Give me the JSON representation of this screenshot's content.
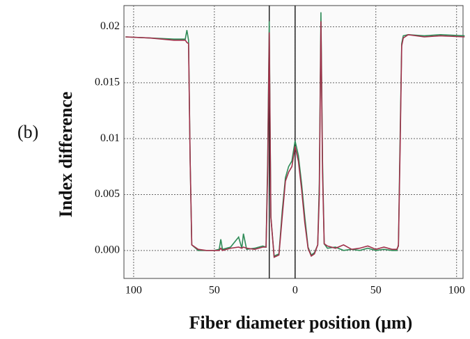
{
  "chart_data": {
    "type": "line",
    "annotation": "(b)",
    "y_label": "Index difference",
    "x_label": "Fiber diameter position (μm)",
    "x": [
      -105,
      -90,
      -75,
      -68,
      -67,
      -66,
      -65,
      -64,
      -60,
      -55,
      -50,
      -47,
      -46,
      -45,
      -40,
      -35,
      -33,
      -32,
      -30,
      -25,
      -20,
      -18,
      -17,
      -16,
      -15,
      -13,
      -10,
      -8,
      -6,
      -4,
      -2,
      0,
      2,
      4,
      6,
      8,
      10,
      12,
      14,
      15,
      16,
      17,
      18,
      20,
      25,
      30,
      35,
      40,
      45,
      50,
      55,
      60,
      63,
      64,
      65,
      66,
      67,
      70,
      80,
      90,
      105
    ],
    "series": [
      {
        "color": "#2e8b57",
        "values": [
          0.0191,
          0.019,
          0.0189,
          0.0189,
          0.0197,
          0.0188,
          0.008,
          0.0005,
          0,
          0,
          0,
          0.0001,
          0.001,
          0.0001,
          0.0003,
          0.0012,
          0.0002,
          0.0015,
          0.0001,
          0.0002,
          0.0004,
          0.0003,
          0.008,
          0.0205,
          0.003,
          -0.0005,
          -0.0003,
          0.0035,
          0.0065,
          0.0075,
          0.008,
          0.0098,
          0.0085,
          0.006,
          0.003,
          0.0003,
          -0.0004,
          -0.0002,
          0.0005,
          0.006,
          0.0213,
          0.008,
          0.0006,
          0.0002,
          0.0003,
          0,
          0.0001,
          0,
          0.0002,
          0,
          0.0001,
          0,
          0,
          0.0005,
          0.01,
          0.0185,
          0.0192,
          0.0193,
          0.0192,
          0.0193,
          0.0192
        ]
      },
      {
        "color": "#a0304a",
        "values": [
          0.0191,
          0.019,
          0.0188,
          0.0188,
          0.0186,
          0.0185,
          0.008,
          0.0005,
          0.0001,
          0,
          0,
          0,
          0.0002,
          0,
          0.0002,
          0.0003,
          0.0002,
          0.0003,
          0.0002,
          0.0001,
          0.0003,
          0.0003,
          0.007,
          0.0195,
          0.003,
          -0.0006,
          -0.0004,
          0.003,
          0.0062,
          0.007,
          0.0075,
          0.0093,
          0.008,
          0.0055,
          0.0025,
          0.0002,
          -0.0005,
          -0.0003,
          0.0005,
          0.005,
          0.0205,
          0.007,
          0.0006,
          0.0004,
          0.0002,
          0.0005,
          0.0001,
          0.0002,
          0.0004,
          0.0001,
          0.0003,
          0.0001,
          0.0001,
          0.0004,
          0.009,
          0.0183,
          0.019,
          0.0193,
          0.0191,
          0.0192,
          0.0191
        ]
      }
    ],
    "xlim": [
      -106,
      104
    ],
    "xticks": [
      {
        "value": -100,
        "label": "100"
      },
      {
        "value": -50,
        "label": "50"
      },
      0,
      50,
      100
    ],
    "ylim": [
      -0.0025,
      0.0219
    ],
    "yticks": [
      {
        "value": 0,
        "label": "0.000"
      },
      0.005,
      0.01,
      0.015,
      0.02
    ],
    "vlines": [
      -16,
      0
    ],
    "grid": true
  }
}
